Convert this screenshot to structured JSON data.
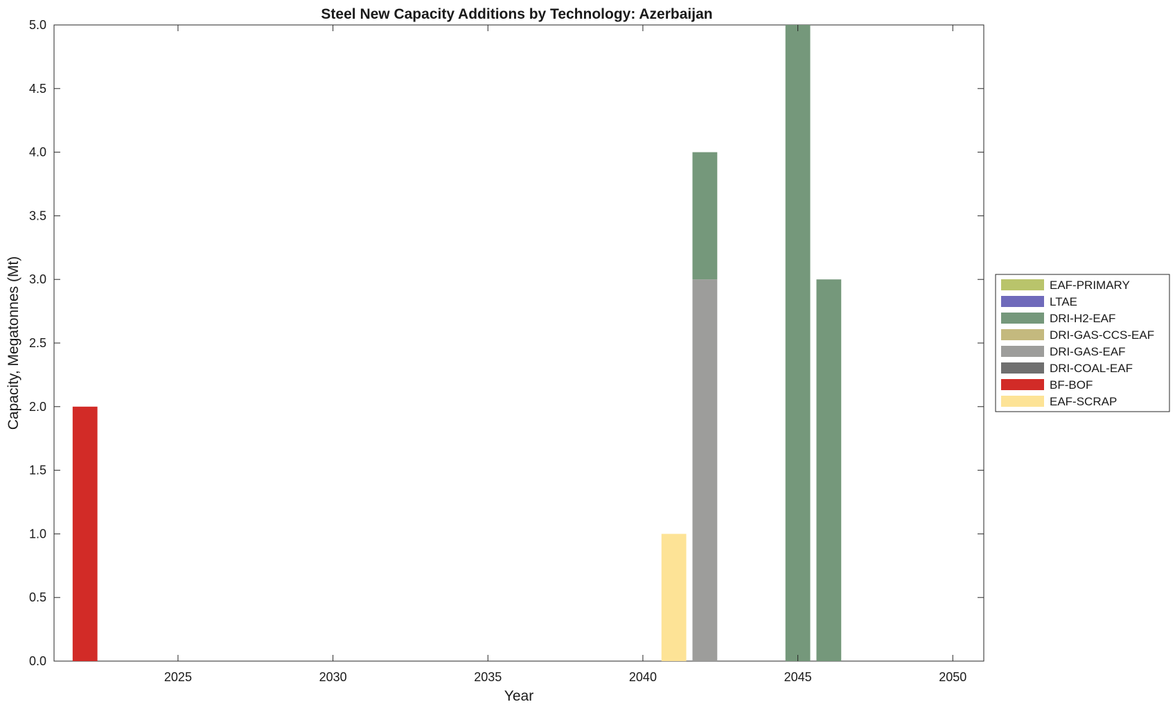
{
  "chart_data": {
    "type": "bar",
    "stacked": true,
    "title": "Steel New Capacity Additions by Technology: Azerbaijan",
    "xlabel": "Year",
    "ylabel": "Capacity, Megatonnes (Mt)",
    "xlim": [
      2021,
      2051
    ],
    "ylim": [
      0,
      5
    ],
    "xticks": [
      2025,
      2030,
      2035,
      2040,
      2045,
      2050
    ],
    "yticks": [
      0.0,
      0.5,
      1.0,
      1.5,
      2.0,
      2.5,
      3.0,
      3.5,
      4.0,
      4.5,
      5.0
    ],
    "ytick_labels": [
      "0.0",
      "0.5",
      "1.0",
      "1.5",
      "2.0",
      "2.5",
      "3.0",
      "3.5",
      "4.0",
      "4.5",
      "5.0"
    ],
    "grid": false,
    "legend_position": "right",
    "x": [
      2022,
      2041,
      2042,
      2045,
      2046
    ],
    "series": [
      {
        "name": "EAF-SCRAP",
        "color": "#FDE396",
        "values": [
          0,
          1,
          0,
          0,
          0
        ]
      },
      {
        "name": "BF-BOF",
        "color": "#D22B27",
        "values": [
          2,
          0,
          0,
          0,
          0
        ]
      },
      {
        "name": "DRI-COAL-EAF",
        "color": "#6F6F6F",
        "values": [
          0,
          0,
          0,
          0,
          0
        ]
      },
      {
        "name": "DRI-GAS-EAF",
        "color": "#9D9D9B",
        "values": [
          0,
          0,
          3,
          0,
          0
        ]
      },
      {
        "name": "DRI-GAS-CCS-EAF",
        "color": "#C4B97E",
        "values": [
          0,
          0,
          0,
          0,
          0
        ]
      },
      {
        "name": "DRI-H2-EAF",
        "color": "#75987B",
        "values": [
          0,
          0,
          1,
          5,
          3
        ]
      },
      {
        "name": "LTAE",
        "color": "#6F6ABB",
        "values": [
          0,
          0,
          0,
          0,
          0
        ]
      },
      {
        "name": "EAF-PRIMARY",
        "color": "#B9C46B",
        "values": [
          0,
          0,
          0,
          0,
          0
        ]
      }
    ]
  }
}
